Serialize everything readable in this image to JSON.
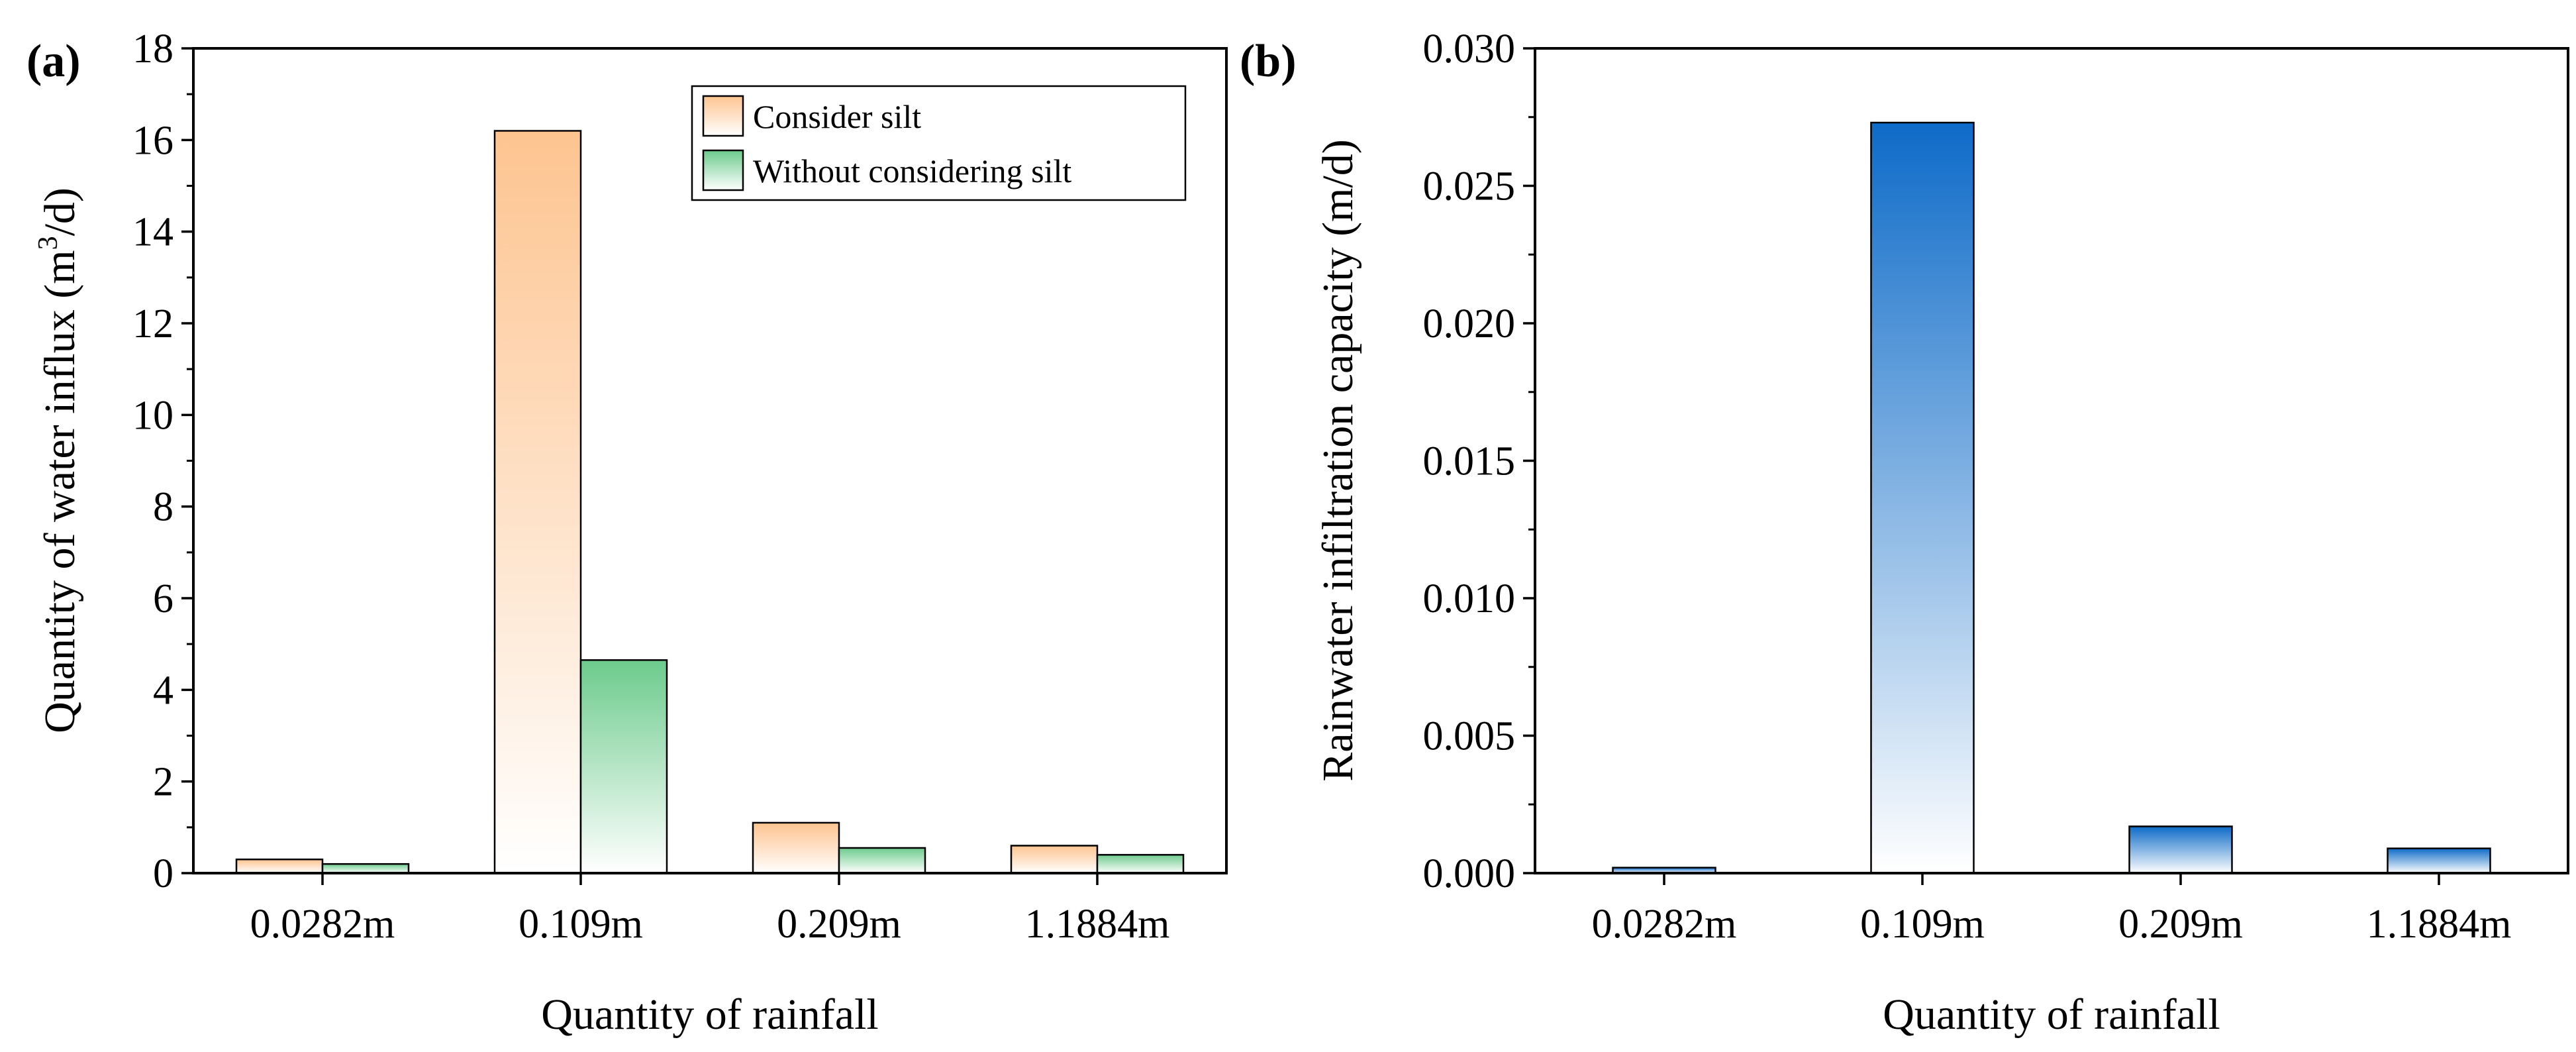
{
  "chart_data": [
    {
      "panel_label": "(a)",
      "type": "bar",
      "categories": [
        "0.0282m",
        "0.109m",
        "0.209m",
        "1.1884m"
      ],
      "series": [
        {
          "name": "Consider silt",
          "values": [
            0.3,
            16.2,
            1.1,
            0.6
          ],
          "color": "#FDC490"
        },
        {
          "name": "Without considering silt",
          "values": [
            0.2,
            4.65,
            0.55,
            0.4
          ],
          "color": "#6CCB8C"
        }
      ],
      "xlabel": "Quantity of rainfall",
      "ylabel_main": "Quantity of water influx (m",
      "ylabel_sup": "3",
      "ylabel_tail": "/d)",
      "ylim": [
        0,
        18
      ],
      "yticks": [
        "0",
        "2",
        "4",
        "6",
        "8",
        "10",
        "12",
        "14",
        "16",
        "18"
      ],
      "legend_position": "top-right",
      "grid": false
    },
    {
      "panel_label": "(b)",
      "type": "bar",
      "categories": [
        "0.0282m",
        "0.109m",
        "0.209m",
        "1.1884m"
      ],
      "series": [
        {
          "name": "Rainwater infiltration capacity",
          "values": [
            0.0002,
            0.0273,
            0.0017,
            0.0009
          ],
          "color": "#0E6BC8"
        }
      ],
      "xlabel": "Quantity of rainfall",
      "ylabel": "Rainwater infiltration capacity (m/d)",
      "ylim": [
        0,
        0.03
      ],
      "yticks": [
        "0.000",
        "0.005",
        "0.010",
        "0.015",
        "0.020",
        "0.025",
        "0.030"
      ],
      "grid": false
    }
  ]
}
